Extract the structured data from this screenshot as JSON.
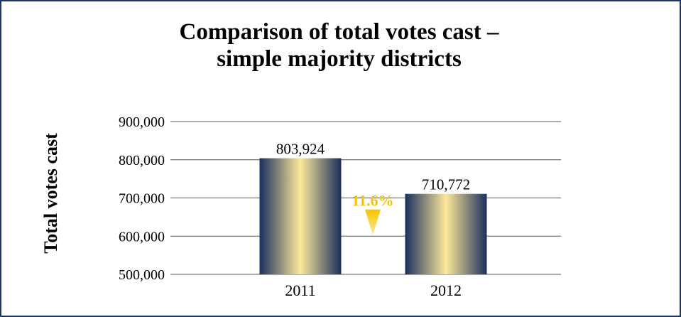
{
  "chart_data": {
    "type": "bar",
    "title": [
      "Comparison of total votes cast –",
      "simple majority districts"
    ],
    "ylabel": "Total votes cast",
    "xlabel": "",
    "categories": [
      "2011",
      "2012"
    ],
    "values": [
      803924,
      710772
    ],
    "data_labels": [
      "803,924",
      "710,772"
    ],
    "ylim": [
      500000,
      900000
    ],
    "yticks": [
      500000,
      600000,
      700000,
      800000,
      900000
    ],
    "ytick_labels": [
      "500,000",
      "600,000",
      "700,000",
      "800,000",
      "900,000"
    ],
    "grid": true,
    "legend": "none",
    "annotation": {
      "text": "11.6%",
      "type": "decrease-arrow",
      "color": "#f5c400"
    },
    "colors": {
      "bar_dark": "#1b2f5e",
      "bar_light": "#fde99a",
      "frame": "#1f3564",
      "grid": "#555555"
    }
  }
}
